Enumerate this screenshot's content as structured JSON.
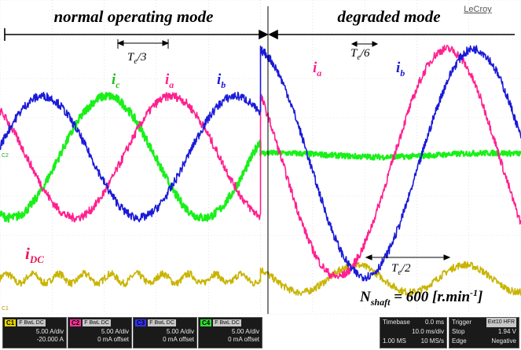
{
  "brand": "LeCroy",
  "modes": {
    "left": "normal operating mode",
    "right": "degraded mode"
  },
  "period_labels": {
    "third": {
      "sym": "T",
      "sub": "e",
      "rest": "/3"
    },
    "sixth": {
      "sym": "T",
      "sub": "e",
      "rest": "/6"
    },
    "half": {
      "sym": "T",
      "sub": "e",
      "rest": "/2"
    }
  },
  "current_labels": {
    "ic": {
      "sym": "i",
      "sub": "c"
    },
    "ia_left": {
      "sym": "i",
      "sub": "a"
    },
    "ib_left": {
      "sym": "i",
      "sub": "b"
    },
    "ia_right": {
      "sym": "i",
      "sub": "a"
    },
    "ib_right": {
      "sym": "i",
      "sub": "b"
    },
    "idc": {
      "sym": "i",
      "sub": "DC"
    }
  },
  "speed_annotation": {
    "sym": "N",
    "sub": "shaft",
    "mid": " = 600 [r.min",
    "sup": "-1",
    "end": "]"
  },
  "markers": {
    "c2": "C2",
    "c1": "C1"
  },
  "colors": {
    "ia": "#ff1f8f",
    "ib": "#1a1ad9",
    "ic": "#19f019",
    "idc": "#c8b400",
    "ch1_tag": "#e6d600",
    "ch2_tag": "#ff3399",
    "ch3_tag": "#3333ff",
    "ch4_tag": "#33dd33",
    "label_red": "#e8185a"
  },
  "channels": [
    {
      "tag": "C1",
      "flags": "F BwL DC",
      "row1": "5.00 A/div",
      "row2": "-20.000 A"
    },
    {
      "tag": "C2",
      "flags": "F BwL DC",
      "row1": "5.00 A/div",
      "row2": "0 mA offset"
    },
    {
      "tag": "C3",
      "flags": "F BwL DC",
      "row1": "5.00 A/div",
      "row2": "0 mA offset"
    },
    {
      "tag": "C4",
      "flags": "F BwL DC",
      "row1": "5.00 A/div",
      "row2": "0 mA offset"
    }
  ],
  "timebase": {
    "label": "Timebase",
    "offset": "0.0 ms",
    "div": "10.0 ms/div",
    "samples": "1.00 MS",
    "rate": "10 MS/s"
  },
  "trigger": {
    "label": "Trigger",
    "badges": "Ext10 HFR",
    "mode": "Stop",
    "level": "1.94 V",
    "type": "Edge",
    "slope": "Negative"
  },
  "chart_data": {
    "type": "line",
    "title": "",
    "xlabel": "",
    "ylabel": "",
    "x_units": "divisions",
    "y_units": "divisions",
    "xlim": [
      0,
      10
    ],
    "ylim": [
      -4,
      4
    ],
    "grid": true,
    "mode_switch_x": 5,
    "series": [
      {
        "name": "ia",
        "segments": [
          {
            "x_range": [
              0,
              5
            ],
            "amplitude": 1.55,
            "period_div": 3.7,
            "phase_deg": 130,
            "offset": 0
          },
          {
            "x_range": [
              5,
              10
            ],
            "amplitude": 2.9,
            "period_div": 4.2,
            "phase_deg": 75,
            "offset": -0.15
          }
        ]
      },
      {
        "name": "ib",
        "segments": [
          {
            "x_range": [
              0,
              5
            ],
            "amplitude": 1.55,
            "period_div": 3.7,
            "phase_deg": 10,
            "offset": 0
          },
          {
            "x_range": [
              5,
              10
            ],
            "amplitude": 2.9,
            "period_div": 4.2,
            "phase_deg": 30,
            "offset": -0.15
          }
        ]
      },
      {
        "name": "ic",
        "segments": [
          {
            "x_range": [
              0,
              5
            ],
            "amplitude": 1.55,
            "period_div": 3.7,
            "phase_deg": 250,
            "offset": 0
          },
          {
            "x_range": [
              5,
              10
            ],
            "amplitude": 0.05,
            "period_div": 4.2,
            "phase_deg": 0,
            "offset": 0.05
          }
        ]
      },
      {
        "name": "idc",
        "segments": [
          {
            "x_range": [
              0,
              5
            ],
            "level": -3.1,
            "ripple": 0.12
          },
          {
            "x_range": [
              5,
              10
            ],
            "level": -3.1,
            "ripple": 0.35,
            "ripple_period_div": 2.1
          }
        ]
      }
    ]
  }
}
